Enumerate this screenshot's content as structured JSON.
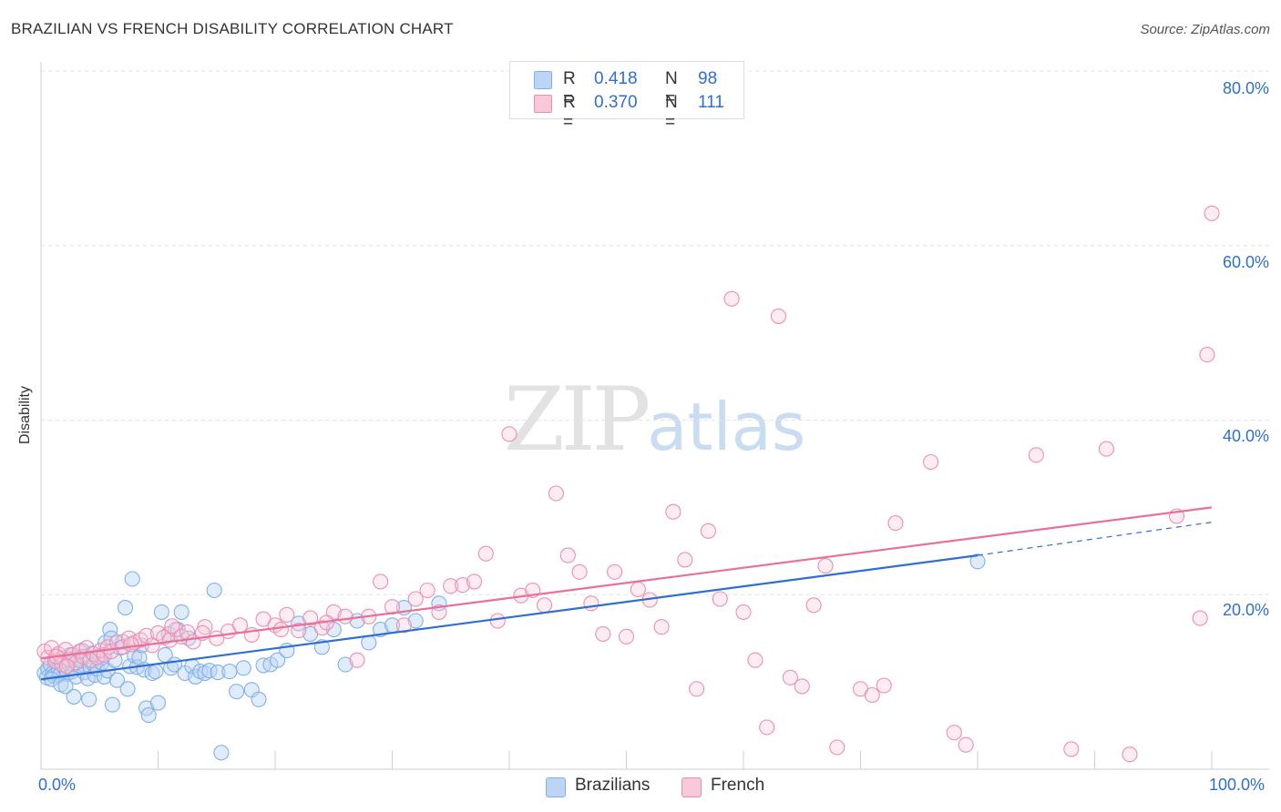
{
  "header": {
    "title": "BRAZILIAN VS FRENCH DISABILITY CORRELATION CHART",
    "source": "Source: ZipAtlas.com"
  },
  "watermark": {
    "zip": "ZIP",
    "atlas": "atlas"
  },
  "legend": {
    "rows": [
      {
        "r_label": "R =",
        "r_value": "0.418",
        "n_label": "N =",
        "n_value": "98",
        "color": "#7fb0ec",
        "fill": "#bcd5f5"
      },
      {
        "r_label": "R =",
        "r_value": "0.370",
        "n_label": "N =",
        "n_value": "111",
        "color": "#ee8eaf",
        "fill": "#f8c9d9"
      }
    ]
  },
  "bottom_legend": [
    {
      "label": "Brazilians",
      "color": "#7fb0ec",
      "fill": "#bcd5f5"
    },
    {
      "label": "French",
      "color": "#ee8eaf",
      "fill": "#f8c9d9"
    }
  ],
  "chart_data": {
    "type": "scatter",
    "title": "BRAZILIAN VS FRENCH DISABILITY CORRELATION CHART",
    "xlabel": "",
    "ylabel": "Disability",
    "xlim": [
      0,
      100
    ],
    "ylim": [
      0,
      80
    ],
    "x_tick_labels": {
      "min": "0.0%",
      "max": "100.0%"
    },
    "y_ticks": [
      {
        "value": 20,
        "label": "20.0%"
      },
      {
        "value": 40,
        "label": "40.0%"
      },
      {
        "value": 60,
        "label": "60.0%"
      },
      {
        "value": 80,
        "label": "80.0%"
      }
    ],
    "grid": "horizontal dashed",
    "legend_position": "top-center",
    "series": [
      {
        "name": "Brazilians",
        "color": "#2f6fd0",
        "marker_color": "#7fb0ec",
        "trend": {
          "x0": 0,
          "y0": 10.3,
          "x1": 80,
          "y1": 24.5,
          "dashed_to_x": 100,
          "dashed_to_y": 28.3
        },
        "points": [
          [
            0.3,
            11
          ],
          [
            0.5,
            10.5
          ],
          [
            0.6,
            11.5
          ],
          [
            0.8,
            12
          ],
          [
            1,
            11
          ],
          [
            1.1,
            10.7
          ],
          [
            1.3,
            12.3
          ],
          [
            1.5,
            11.4
          ],
          [
            1.6,
            10.8
          ],
          [
            1.8,
            12.7
          ],
          [
            2,
            11.6
          ],
          [
            2.2,
            10.9
          ],
          [
            2.4,
            12.1
          ],
          [
            2.5,
            13.1
          ],
          [
            2.7,
            11.2
          ],
          [
            2.9,
            12.6
          ],
          [
            3,
            10.6
          ],
          [
            3.2,
            11.9
          ],
          [
            3.4,
            12.4
          ],
          [
            3.5,
            13.6
          ],
          [
            3.7,
            11.1
          ],
          [
            3.9,
            12.9
          ],
          [
            4,
            10.4
          ],
          [
            4.2,
            11.7
          ],
          [
            4.4,
            13.3
          ],
          [
            4.5,
            12
          ],
          [
            4.6,
            10.8
          ],
          [
            4.8,
            11.5
          ],
          [
            5,
            13
          ],
          [
            5.2,
            12.2
          ],
          [
            5.4,
            10.6
          ],
          [
            5.5,
            14.5
          ],
          [
            5.7,
            11.3
          ],
          [
            5.9,
            16
          ],
          [
            6,
            15
          ],
          [
            6.3,
            12.5
          ],
          [
            6.5,
            10.2
          ],
          [
            6.8,
            13.9
          ],
          [
            7,
            14.6
          ],
          [
            7.2,
            18.5
          ],
          [
            7.4,
            9.2
          ],
          [
            7.6,
            11.8
          ],
          [
            7.8,
            21.8
          ],
          [
            8,
            13
          ],
          [
            8.2,
            11.7
          ],
          [
            8.4,
            12.8
          ],
          [
            8.6,
            14.2
          ],
          [
            8.8,
            11.4
          ],
          [
            9,
            7
          ],
          [
            9.2,
            6.2
          ],
          [
            9.5,
            11
          ],
          [
            9.8,
            11.2
          ],
          [
            10,
            7.6
          ],
          [
            10.3,
            18
          ],
          [
            10.6,
            13.1
          ],
          [
            10.9,
            15.5
          ],
          [
            11.1,
            11.6
          ],
          [
            11.4,
            12
          ],
          [
            11.7,
            16
          ],
          [
            12,
            18
          ],
          [
            12.3,
            11
          ],
          [
            12.6,
            15
          ],
          [
            12.9,
            11.8
          ],
          [
            13.2,
            10.6
          ],
          [
            13.6,
            11.2
          ],
          [
            14,
            11
          ],
          [
            14.4,
            11.3
          ],
          [
            14.8,
            20.5
          ],
          [
            15.1,
            11.1
          ],
          [
            15.4,
            1.9
          ],
          [
            16.1,
            11.2
          ],
          [
            16.7,
            8.9
          ],
          [
            17.3,
            11.6
          ],
          [
            18,
            9.1
          ],
          [
            18.6,
            8
          ],
          [
            19,
            11.9
          ],
          [
            19.6,
            12
          ],
          [
            20.2,
            12.5
          ],
          [
            21,
            13.6
          ],
          [
            22,
            16.7
          ],
          [
            23,
            15.5
          ],
          [
            24,
            14
          ],
          [
            25,
            16
          ],
          [
            26,
            12
          ],
          [
            27,
            17
          ],
          [
            28,
            14.5
          ],
          [
            29,
            16
          ],
          [
            30,
            16.5
          ],
          [
            31,
            18.5
          ],
          [
            32,
            17
          ],
          [
            34,
            19
          ],
          [
            0.9,
            10.3
          ],
          [
            1.7,
            9.7
          ],
          [
            2.1,
            9.5
          ],
          [
            2.8,
            8.3
          ],
          [
            4.1,
            8
          ],
          [
            6.1,
            7.4
          ],
          [
            80,
            23.8
          ]
        ]
      },
      {
        "name": "French",
        "color": "#e8719b",
        "marker_color": "#ee8eaf",
        "trend": {
          "x0": 0,
          "y0": 12.7,
          "x1": 100,
          "y1": 30
        },
        "points": [
          [
            0.3,
            13.5
          ],
          [
            0.6,
            12.8
          ],
          [
            0.9,
            13.9
          ],
          [
            1.2,
            12.4
          ],
          [
            1.5,
            13.2
          ],
          [
            1.8,
            12
          ],
          [
            2.1,
            13.7
          ],
          [
            2.4,
            12.6
          ],
          [
            2.7,
            13.1
          ],
          [
            3,
            12.2
          ],
          [
            3.3,
            13.5
          ],
          [
            3.6,
            12.9
          ],
          [
            3.9,
            13.9
          ],
          [
            4.2,
            12.5
          ],
          [
            4.5,
            13.2
          ],
          [
            4.8,
            12.8
          ],
          [
            5.1,
            13.6
          ],
          [
            5.4,
            13.1
          ],
          [
            5.7,
            14
          ],
          [
            6,
            13.5
          ],
          [
            6.5,
            14.5
          ],
          [
            7,
            14
          ],
          [
            7.5,
            15
          ],
          [
            8,
            14.5
          ],
          [
            8.5,
            14.8
          ],
          [
            9,
            15.3
          ],
          [
            9.5,
            14.2
          ],
          [
            10,
            15.6
          ],
          [
            10.5,
            15.1
          ],
          [
            11,
            14.8
          ],
          [
            11.5,
            16
          ],
          [
            12,
            15.2
          ],
          [
            12.5,
            15.7
          ],
          [
            13,
            14.6
          ],
          [
            14,
            16.3
          ],
          [
            15,
            15
          ],
          [
            16,
            15.8
          ],
          [
            17,
            16.5
          ],
          [
            18,
            15.4
          ],
          [
            19,
            17.2
          ],
          [
            20,
            16.5
          ],
          [
            21,
            17.7
          ],
          [
            22,
            15.9
          ],
          [
            23,
            17.3
          ],
          [
            24,
            16.2
          ],
          [
            25,
            18
          ],
          [
            26,
            17.5
          ],
          [
            27,
            12.5
          ],
          [
            28,
            17.5
          ],
          [
            29,
            21.5
          ],
          [
            30,
            18.6
          ],
          [
            31,
            16.5
          ],
          [
            32,
            19.5
          ],
          [
            33,
            20.5
          ],
          [
            34,
            18
          ],
          [
            35,
            21
          ],
          [
            36,
            21.1
          ],
          [
            37,
            21.5
          ],
          [
            38,
            24.7
          ],
          [
            39,
            17
          ],
          [
            40,
            38.4
          ],
          [
            41,
            19.9
          ],
          [
            42,
            20.5
          ],
          [
            43,
            18.8
          ],
          [
            44,
            31.6
          ],
          [
            45,
            24.5
          ],
          [
            46,
            22.6
          ],
          [
            47,
            19
          ],
          [
            48,
            15.5
          ],
          [
            49,
            22.6
          ],
          [
            50,
            15.2
          ],
          [
            51,
            20.6
          ],
          [
            52,
            19.4
          ],
          [
            53,
            16.3
          ],
          [
            54,
            29.5
          ],
          [
            55,
            24
          ],
          [
            56,
            9.2
          ],
          [
            57,
            27.3
          ],
          [
            58,
            19.5
          ],
          [
            59,
            53.9
          ],
          [
            60,
            18
          ],
          [
            61,
            12.5
          ],
          [
            62,
            4.8
          ],
          [
            63,
            51.9
          ],
          [
            64,
            10.5
          ],
          [
            65,
            9.5
          ],
          [
            66,
            18.8
          ],
          [
            67,
            23.3
          ],
          [
            68,
            2.5
          ],
          [
            70,
            9.2
          ],
          [
            71,
            8.5
          ],
          [
            72,
            9.6
          ],
          [
            73,
            28.2
          ],
          [
            76,
            35.2
          ],
          [
            78,
            4.2
          ],
          [
            79,
            2.8
          ],
          [
            85,
            36
          ],
          [
            88,
            2.3
          ],
          [
            91,
            36.7
          ],
          [
            93,
            1.7
          ],
          [
            97,
            29
          ],
          [
            99,
            17.3
          ],
          [
            99.6,
            47.5
          ],
          [
            100,
            63.7
          ],
          [
            11.2,
            16.4
          ],
          [
            13.8,
            15.6
          ],
          [
            20.5,
            16
          ],
          [
            24.4,
            16.8
          ],
          [
            7.7,
            14.3
          ],
          [
            2.2,
            11.8
          ],
          [
            1.3,
            12.9
          ]
        ]
      }
    ]
  }
}
